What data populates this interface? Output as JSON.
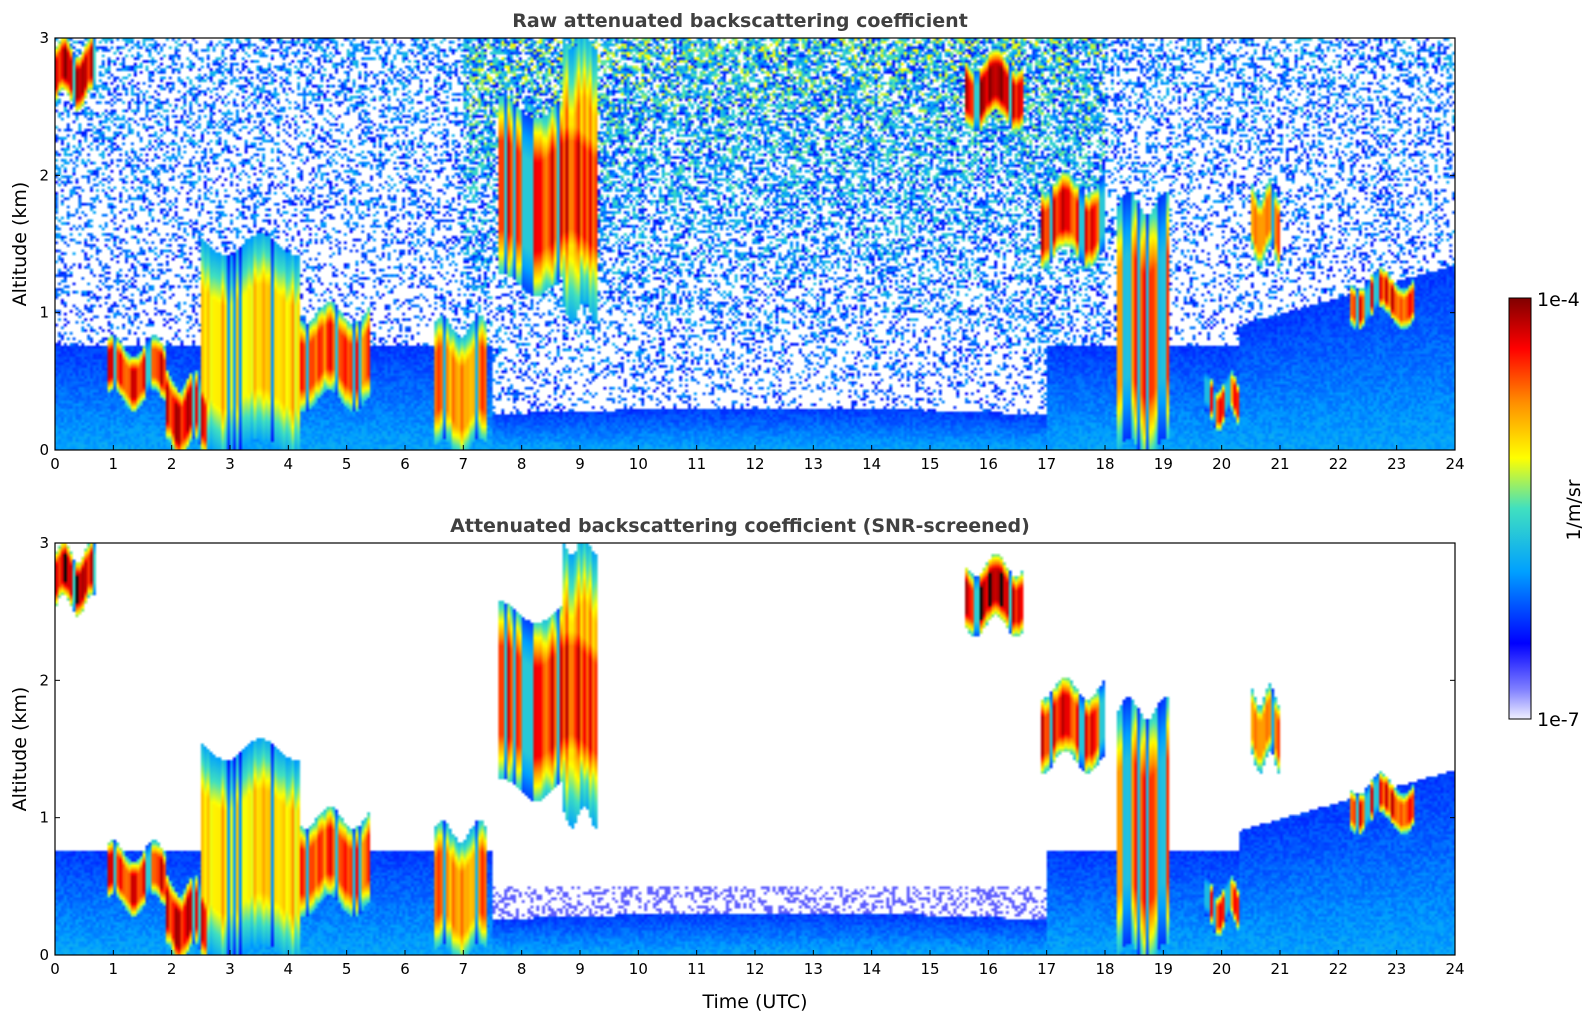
{
  "chart_data": [
    {
      "type": "heatmap",
      "title": "Raw attenuated backscattering coefficient",
      "xlabel": "",
      "ylabel": "Altitude (km)",
      "xlim": [
        0,
        24
      ],
      "ylim": [
        0,
        3
      ],
      "xticks": [
        "0",
        "1",
        "2",
        "3",
        "4",
        "5",
        "6",
        "7",
        "8",
        "9",
        "10",
        "11",
        "12",
        "13",
        "14",
        "15",
        "16",
        "17",
        "18",
        "19",
        "20",
        "21",
        "22",
        "23",
        "24"
      ],
      "yticks": [
        "0",
        "1",
        "2",
        "3"
      ],
      "cloud_layers": [
        {
          "t0": 0.0,
          "t1": 0.7,
          "alt0": 2.55,
          "alt1": 2.95,
          "level": 1.0
        },
        {
          "t0": 0.9,
          "t1": 1.9,
          "alt0": 0.35,
          "alt1": 0.75,
          "level": 0.95
        },
        {
          "t0": 1.9,
          "t1": 2.6,
          "alt0": 0.0,
          "alt1": 0.5,
          "level": 1.0
        },
        {
          "t0": 2.5,
          "t1": 4.2,
          "alt0": 0.0,
          "alt1": 1.5,
          "level": 0.75
        },
        {
          "t0": 4.2,
          "t1": 5.4,
          "alt0": 0.35,
          "alt1": 1.0,
          "level": 0.9
        },
        {
          "t0": 6.5,
          "t1": 7.4,
          "alt0": 0.0,
          "alt1": 0.9,
          "level": 0.85
        },
        {
          "t0": 7.6,
          "t1": 9.3,
          "alt0": 1.2,
          "alt1": 2.5,
          "level": 0.95
        },
        {
          "t0": 8.7,
          "t1": 9.3,
          "alt0": 1.0,
          "alt1": 3.0,
          "level": 0.8
        },
        {
          "t0": 15.6,
          "t1": 16.6,
          "alt0": 2.4,
          "alt1": 2.85,
          "level": 1.0
        },
        {
          "t0": 16.9,
          "t1": 18.0,
          "alt0": 1.4,
          "alt1": 1.95,
          "level": 0.95
        },
        {
          "t0": 18.2,
          "t1": 19.1,
          "alt0": 0.0,
          "alt1": 1.8,
          "level": 0.9
        },
        {
          "t0": 19.7,
          "t1": 20.3,
          "alt0": 0.2,
          "alt1": 0.5,
          "level": 0.9
        },
        {
          "t0": 20.5,
          "t1": 21.0,
          "alt0": 1.4,
          "alt1": 1.9,
          "level": 0.85
        },
        {
          "t0": 22.2,
          "t1": 23.3,
          "alt0": 0.95,
          "alt1": 1.25,
          "level": 0.95
        }
      ]
    },
    {
      "type": "heatmap",
      "title": "Attenuated backscattering coefficient (SNR-screened)",
      "xlabel": "Time (UTC)",
      "ylabel": "Altitude (km)",
      "xlim": [
        0,
        24
      ],
      "ylim": [
        0,
        3
      ],
      "xticks": [
        "0",
        "1",
        "2",
        "3",
        "4",
        "5",
        "6",
        "7",
        "8",
        "9",
        "10",
        "11",
        "12",
        "13",
        "14",
        "15",
        "16",
        "17",
        "18",
        "19",
        "20",
        "21",
        "22",
        "23",
        "24"
      ],
      "yticks": [
        "0",
        "1",
        "2",
        "3"
      ],
      "screened": true
    }
  ],
  "colorbar": {
    "max_label": "1e-4",
    "min_label": "1e-7",
    "unit_label": "1/m/sr",
    "scale": "log",
    "range": [
      1e-07,
      0.0001
    ],
    "colors": [
      "#e6e6fa",
      "#0000ff",
      "#00bfff",
      "#40e0a0",
      "#ffff00",
      "#ff8000",
      "#ff0000",
      "#800000"
    ]
  }
}
